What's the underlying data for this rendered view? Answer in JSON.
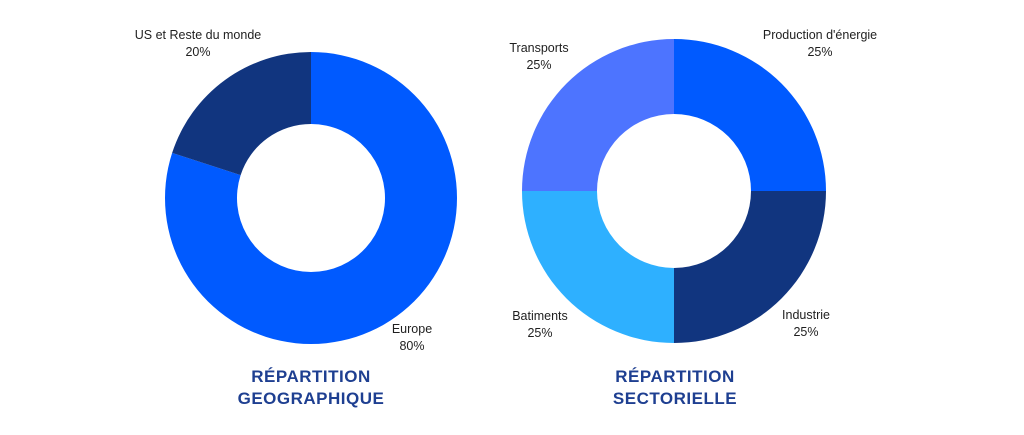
{
  "colors": {
    "title": "#1e3f91",
    "label_text": "#1f1f1f",
    "background": "#ffffff"
  },
  "chart_data": [
    {
      "type": "pie",
      "style": "donut",
      "title_lines": [
        "RÉPARTITION",
        "GEOGRAPHIQUE"
      ],
      "slices": [
        {
          "label": "Europe",
          "value": 80,
          "value_label": "80%",
          "color": "#005aff"
        },
        {
          "label": "US et Reste du monde",
          "value": 20,
          "value_label": "20%",
          "color": "#11357f"
        }
      ]
    },
    {
      "type": "pie",
      "style": "donut",
      "title_lines": [
        "RÉPARTITION",
        "SECTORIELLE"
      ],
      "slices": [
        {
          "label": "Production d'énergie",
          "value": 25,
          "value_label": "25%",
          "color": "#005aff"
        },
        {
          "label": "Industrie",
          "value": 25,
          "value_label": "25%",
          "color": "#11357f"
        },
        {
          "label": "Batiments",
          "value": 25,
          "value_label": "25%",
          "color": "#2eb0ff"
        },
        {
          "label": "Transports",
          "value": 25,
          "value_label": "25%",
          "color": "#4d74ff"
        }
      ]
    }
  ]
}
